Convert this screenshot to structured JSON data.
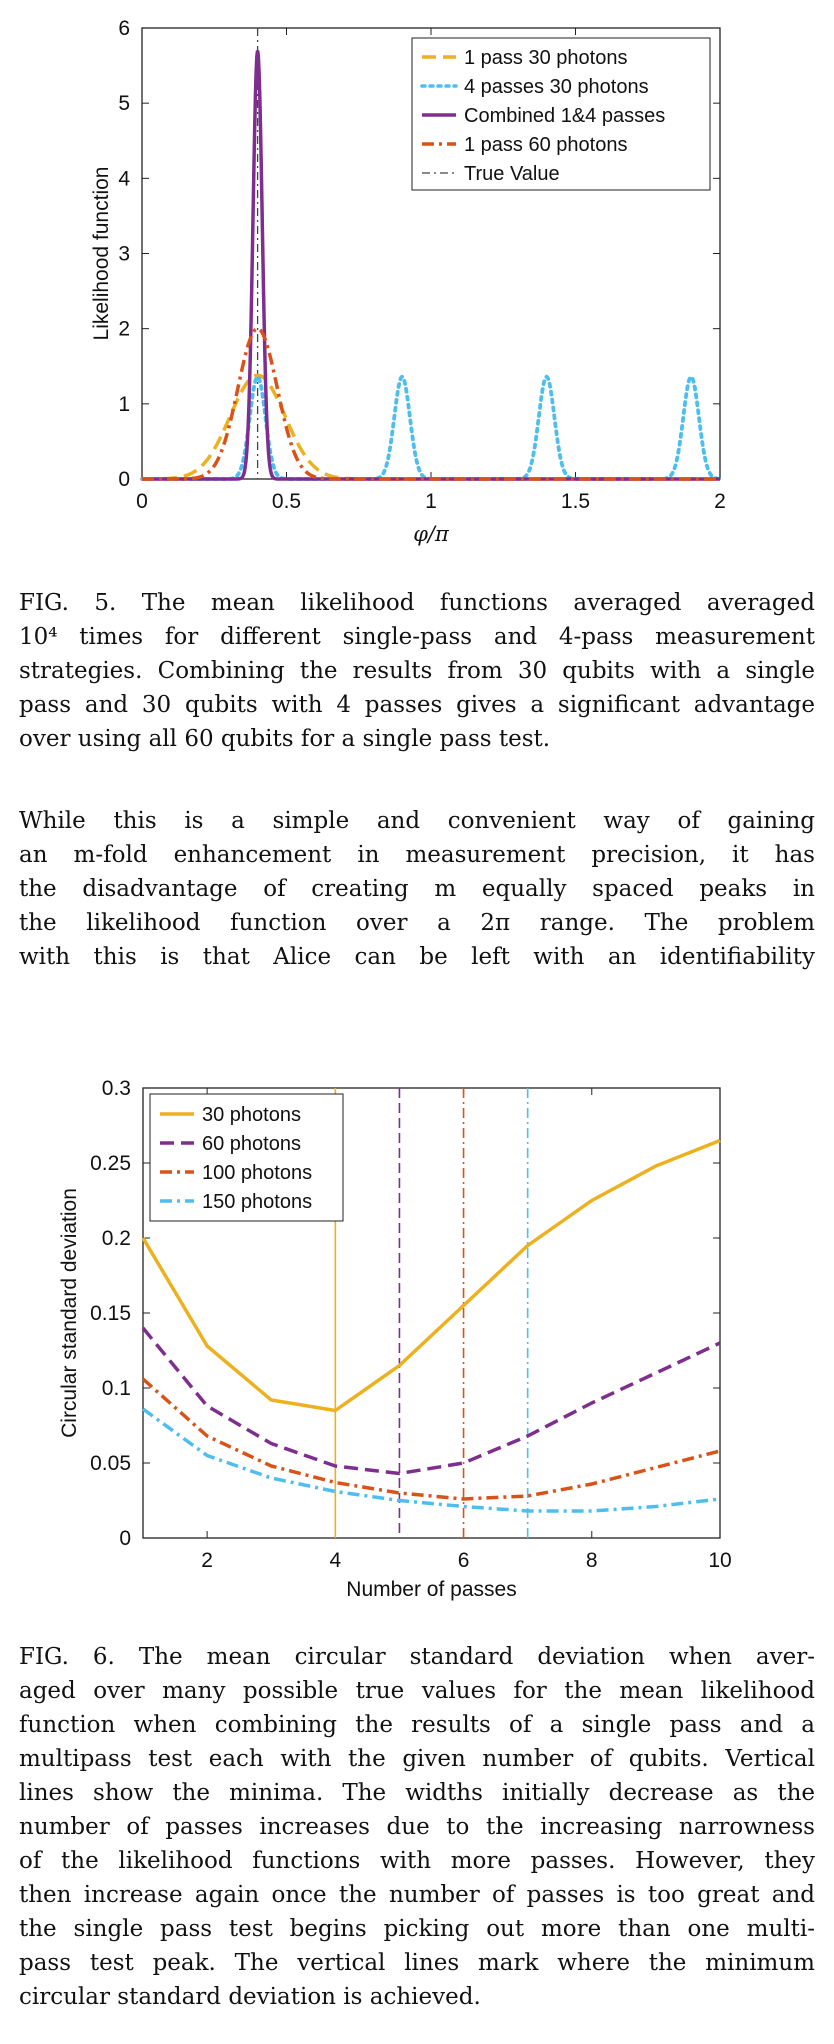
{
  "figures": [
    {
      "chart_data": {
        "type": "line",
        "xlabel": "φ/π",
        "ylabel": "Likelihood function",
        "xlim": [
          0,
          2
        ],
        "ylim": [
          0,
          6
        ],
        "xticks": [
          "0",
          "0.5",
          "1",
          "1.5",
          "2"
        ],
        "yticks": [
          "0",
          "1",
          "2",
          "3",
          "4",
          "5",
          "6"
        ],
        "legend_position": "top-right",
        "legend": [
          "1 pass 30 photons",
          "4 passes 30 photons",
          "Combined 1&4 passes",
          "1 pass 60 photons",
          "True Value"
        ],
        "colors": {
          "one_pass_30": "#EDB120",
          "four_pass_30": "#4DBEEE",
          "combined": "#7E2F8E",
          "one_pass_60": "#D95319",
          "true": "#444444"
        },
        "true_value": 0.4,
        "series": [
          {
            "name": "1 pass 30 photons",
            "style": "dashed",
            "center": 0.4,
            "peak": 1.38,
            "width": 0.095,
            "centers": [
              0.4
            ]
          },
          {
            "name": "4 passes 30 photons",
            "style": "dotted",
            "peak": 1.36,
            "width": 0.027,
            "centers": [
              0.4,
              0.9,
              1.4,
              1.9
            ]
          },
          {
            "name": "Combined 1&4 passes",
            "style": "solid",
            "peak": 5.7,
            "width": 0.016,
            "centers": [
              0.4
            ]
          },
          {
            "name": "1 pass 60 photons",
            "style": "dashdot",
            "peak": 2.0,
            "width": 0.068,
            "centers": [
              0.4
            ]
          }
        ]
      }
    },
    {
      "chart_data": {
        "type": "line",
        "xlabel": "Number of passes",
        "ylabel": "Circular standard deviation",
        "xlim": [
          1,
          10
        ],
        "ylim": [
          0,
          0.3
        ],
        "xticks": [
          "2",
          "4",
          "6",
          "8",
          "10"
        ],
        "yticks": [
          "0",
          "0.05",
          "0.1",
          "0.15",
          "0.2",
          "0.25",
          "0.3"
        ],
        "legend_position": "top-left",
        "x": [
          1,
          2,
          3,
          4,
          5,
          6,
          7,
          8,
          9,
          10
        ],
        "series": [
          {
            "name": "30 photons",
            "style": "solid",
            "color": "#EDB120",
            "values": [
              0.2,
              0.128,
              0.092,
              0.085,
              0.115,
              0.155,
              0.195,
              0.225,
              0.248,
              0.265
            ],
            "min_x": 4
          },
          {
            "name": "60 photons",
            "style": "dashed",
            "color": "#7E2F8E",
            "values": [
              0.14,
              0.088,
              0.063,
              0.048,
              0.043,
              0.05,
              0.068,
              0.09,
              0.11,
              0.13
            ],
            "min_x": 5
          },
          {
            "name": "100 photons",
            "style": "dashdot",
            "color": "#D95319",
            "values": [
              0.106,
              0.068,
              0.048,
              0.037,
              0.03,
              0.026,
              0.028,
              0.036,
              0.047,
              0.058
            ],
            "min_x": 6
          },
          {
            "name": "150 photons",
            "style": "dashdot",
            "color": "#4DBEEE",
            "values": [
              0.086,
              0.055,
              0.04,
              0.031,
              0.025,
              0.021,
              0.018,
              0.018,
              0.021,
              0.026
            ],
            "min_x": 7
          }
        ]
      }
    }
  ],
  "captions": {
    "fig5": [
      "FIG. 5.  The mean likelihood functions averaged averaged",
      "10⁴ times for different single-pass and 4-pass measurement",
      "strategies. Combining the results from 30 qubits with a single",
      "pass and 30 qubits with 4 passes gives a significant advantage",
      "over using all 60 qubits for a single pass test."
    ],
    "body": [
      "    While this is a simple and convenient way of gaining",
      "an m-fold enhancement in measurement precision, it has",
      "the disadvantage of creating m equally spaced peaks in",
      "the likelihood function over a 2π range.  The problem",
      "with this is that Alice can be left with an identifiability"
    ],
    "fig6": [
      "FIG. 6.  The mean circular standard deviation when aver-",
      "aged over many possible true values for the mean likelihood",
      "function when combining the results of a single pass and a",
      "multipass test each with the given number of qubits. Vertical",
      "lines show the minima.  The widths initially decrease as the",
      "number of passes increases due to the increasing narrowness",
      "of the likelihood functions with more passes.  However, they",
      "then increase again once the number of passes is too great and",
      "the single pass test begins picking out more than one multi-",
      "pass test peak.  The vertical lines mark where the minimum",
      "circular standard deviation is achieved."
    ]
  }
}
